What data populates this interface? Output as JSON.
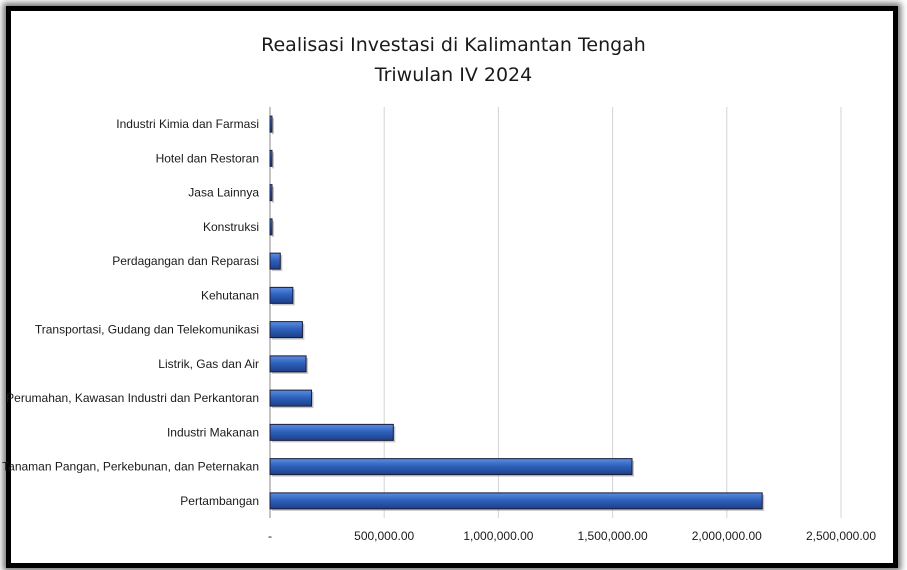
{
  "chart_data": {
    "type": "bar",
    "orientation": "horizontal",
    "title": "Realisasi Investasi di Kalimantan Tengah",
    "subtitle": "Triwulan IV 2024",
    "categories": [
      "Pertambangan",
      "Tanaman Pangan, Perkebunan, dan Peternakan",
      "Industri Makanan",
      "Perumahan, Kawasan Industri dan Perkantoran",
      "Listrik, Gas dan Air",
      "Transportasi, Gudang dan Telekomunikasi",
      "Kehutanan",
      "Perdagangan dan Reparasi",
      "Konstruksi",
      "Jasa Lainnya",
      "Hotel dan Restoran",
      "Industri Kimia dan Farmasi"
    ],
    "values": [
      2155000,
      1585000,
      540000,
      182000,
      158000,
      142000,
      100000,
      45000,
      9000,
      8000,
      5000,
      3000
    ],
    "xlim": [
      0,
      2500000
    ],
    "x_ticks": [
      0,
      500000,
      1000000,
      1500000,
      2000000,
      2500000
    ],
    "x_tick_labels": [
      "-",
      "500,000.00",
      "1,000,000.00",
      "1,500,000.00",
      "2,000,000.00",
      "2,500,000.00"
    ],
    "grid": "vertical",
    "legend": "none",
    "bar_color": "#2e62bd",
    "bar_edge_color": "#1a1a3a"
  }
}
